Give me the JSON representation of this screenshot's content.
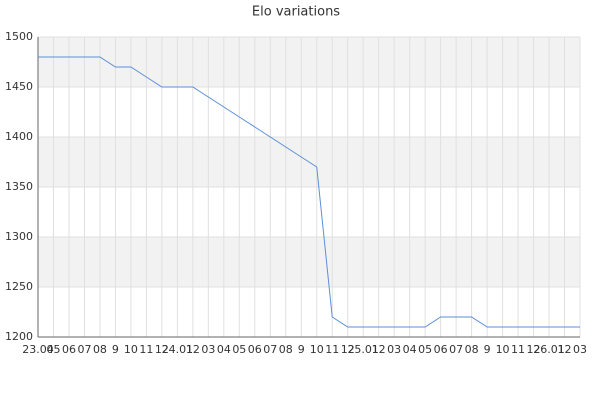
{
  "chart_data": {
    "type": "line",
    "title": "Elo variations",
    "categories": [
      "23.04",
      "05",
      "06",
      "07",
      "08",
      "9",
      "10",
      "11",
      "12",
      "24.01",
      "12",
      "03",
      "04",
      "05",
      "06",
      "07",
      "08",
      "9",
      "10",
      "11",
      "12",
      "25.01",
      "12",
      "03",
      "04",
      "05",
      "06",
      "07",
      "08",
      "9",
      "10",
      "11",
      "12",
      "26.01",
      "12",
      "03"
    ],
    "series": [
      {
        "color": "#5b8fd9",
        "values": [
          1480,
          1480,
          1480,
          1480,
          1480,
          1470,
          1470,
          1460,
          1450,
          1450,
          1450,
          1440,
          1430,
          1420,
          1410,
          1400,
          1390,
          1380,
          1370,
          1220,
          1210,
          1210,
          1210,
          1210,
          1210,
          1210,
          1220,
          1220,
          1220,
          1210,
          1210,
          1210,
          1210,
          1210,
          1210,
          1210
        ]
      }
    ],
    "ylim": [
      1200,
      1500
    ],
    "yticks": [
      1200,
      1250,
      1300,
      1350,
      1400,
      1450,
      1500
    ],
    "grid": true,
    "alternate_bands": true
  }
}
